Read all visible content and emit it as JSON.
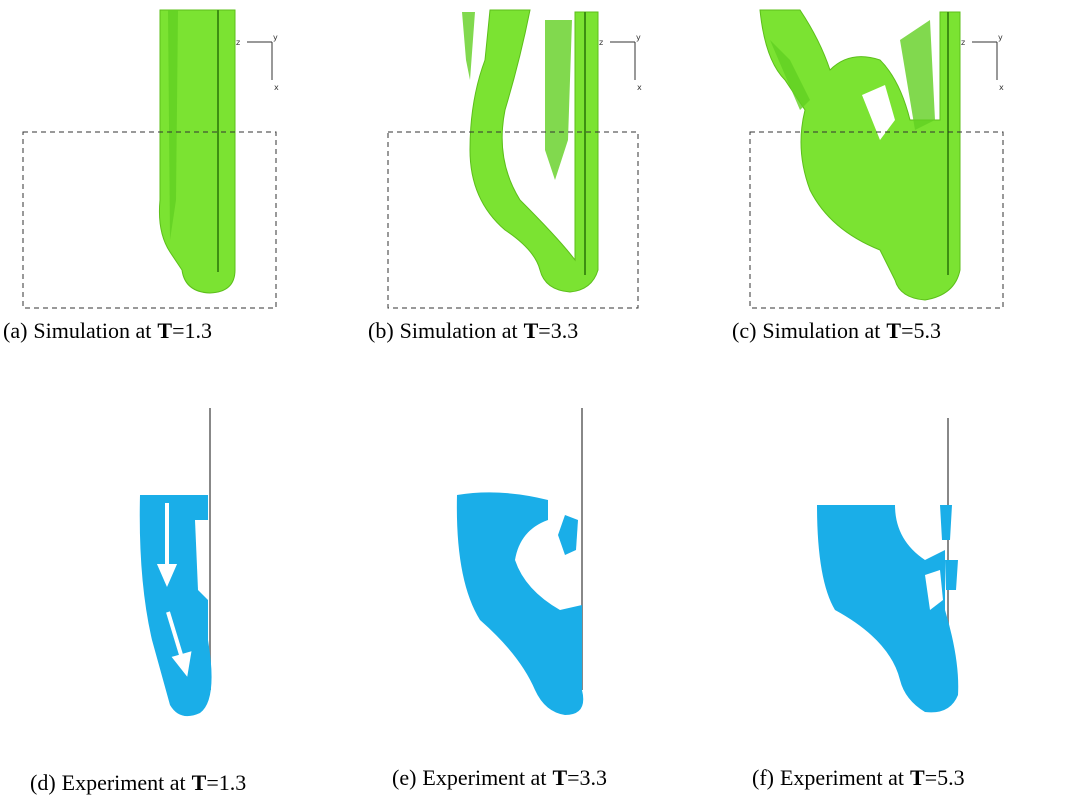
{
  "panels": [
    {
      "label": "(a)",
      "text": "Simulation at",
      "var": "T",
      "value": "=1.3",
      "axes": [
        "z",
        "y",
        "x"
      ]
    },
    {
      "label": "(b)",
      "text": "Simulation at",
      "var": "T",
      "value": "=3.3",
      "axes": [
        "z",
        "y",
        "x"
      ]
    },
    {
      "label": "(c)",
      "text": "Simulation at",
      "var": "T",
      "value": "=5.3",
      "axes": [
        "z",
        "y",
        "x"
      ]
    },
    {
      "label": "(d)",
      "text": "Experiment at",
      "var": "T",
      "value": "=1.3"
    },
    {
      "label": "(e)",
      "text": "Experiment at",
      "var": "T",
      "value": "=3.3"
    },
    {
      "label": "(f)",
      "text": "Experiment at",
      "var": "T",
      "value": "=5.3"
    }
  ]
}
